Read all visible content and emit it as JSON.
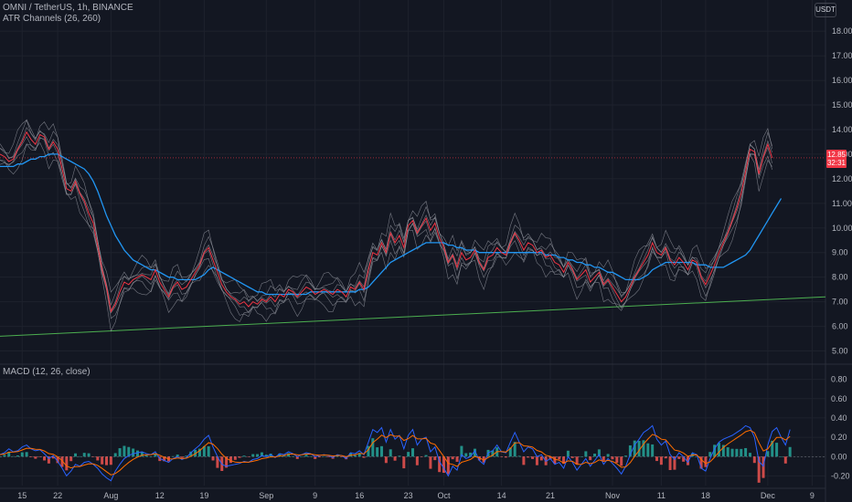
{
  "header": {
    "symbol_line": "OMNI / TetherUS, 1h, BINANCE",
    "indicator": "ATR Channels (26, 260)",
    "currency_button": "USDT"
  },
  "price_tag": {
    "price": "12.85",
    "countdown": "32:31"
  },
  "macd": {
    "title": "MACD (12, 26, close)"
  },
  "colors": {
    "background": "#131722",
    "ma_line": "#2196f3",
    "price_line": "#f23645",
    "channel": "#9598a1",
    "trendline": "#4caf50",
    "macd_line": "#2962ff",
    "signal_line": "#ff6d00",
    "hist_pos": "#26a69a",
    "hist_neg": "#ef5350"
  },
  "chart_data": [
    {
      "type": "line",
      "name": "price",
      "y_ticks": [
        5,
        6,
        7,
        8,
        9,
        10,
        11,
        12,
        13,
        14,
        15,
        16,
        17,
        18
      ],
      "y_tick_labels": [
        "5.00",
        "6.00",
        "7.00",
        "8.00",
        "9.00",
        "10.00",
        "11.00",
        "12.00",
        "13.00",
        "14.00",
        "15.00",
        "16.00",
        "17.00",
        "18.00"
      ],
      "ylim": [
        4.5,
        18.6
      ],
      "x_tick_labels": [
        "15",
        "22",
        "Aug",
        "12",
        "19",
        "Sep",
        "9",
        "16",
        "23",
        "Oct",
        "14",
        "21",
        "Nov",
        "11",
        "18",
        "Dec",
        "9"
      ],
      "x_tick_index": [
        5,
        13,
        25,
        36,
        46,
        60,
        71,
        81,
        92,
        100,
        113,
        124,
        138,
        149,
        159,
        173,
        183
      ],
      "x_range": [
        0,
        186
      ],
      "series": [
        {
          "key": "price",
          "values": [
            13.0,
            12.9,
            12.7,
            12.8,
            13.2,
            13.5,
            13.9,
            13.6,
            13.4,
            13.8,
            13.7,
            13.2,
            13.5,
            13.2,
            12.4,
            11.6,
            11.5,
            11.9,
            11.4,
            11.1,
            10.6,
            10.2,
            9.3,
            8.3,
            7.6,
            6.6,
            6.9,
            7.4,
            7.8,
            7.7,
            7.9,
            8.0,
            8.1,
            8.0,
            7.9,
            8.3,
            7.8,
            7.5,
            7.2,
            7.6,
            7.8,
            7.5,
            7.6,
            7.9,
            8.2,
            8.5,
            9.0,
            9.2,
            8.7,
            8.2,
            7.7,
            7.4,
            7.2,
            7.1,
            6.9,
            7.0,
            6.8,
            7.0,
            6.9,
            7.1,
            7.0,
            7.2,
            7.0,
            7.3,
            7.2,
            7.5,
            7.4,
            7.2,
            7.4,
            7.6,
            7.5,
            7.3,
            7.4,
            7.5,
            7.4,
            7.3,
            7.5,
            7.4,
            7.2,
            7.6,
            7.5,
            7.8,
            7.5,
            8.3,
            9.0,
            8.9,
            9.4,
            9.0,
            9.8,
            9.4,
            9.7,
            9.2,
            10.1,
            10.3,
            9.8,
            10.1,
            10.4,
            9.9,
            10.2,
            9.6,
            9.2,
            8.6,
            8.9,
            8.4,
            9.0,
            8.7,
            8.8,
            9.1,
            8.6,
            8.3,
            8.8,
            8.9,
            9.2,
            9.0,
            8.9,
            9.4,
            9.8,
            9.5,
            9.1,
            9.4,
            9.3,
            9.0,
            9.1,
            8.8,
            8.9,
            8.6,
            8.5,
            8.2,
            8.6,
            8.3,
            7.9,
            8.1,
            8.3,
            7.8,
            8.0,
            8.2,
            7.7,
            7.9,
            7.6,
            7.3,
            7.0,
            7.2,
            7.6,
            8.0,
            8.3,
            8.6,
            8.9,
            9.4,
            9.0,
            8.9,
            9.2,
            8.7,
            8.5,
            8.8,
            8.6,
            8.3,
            8.7,
            8.6,
            8.0,
            7.7,
            8.1,
            8.5,
            9.0,
            9.4,
            9.8,
            10.3,
            10.8,
            11.4,
            12.3,
            13.2,
            13.1,
            12.2,
            12.9,
            13.4,
            12.85
          ]
        },
        {
          "key": "ma",
          "values": [
            12.5,
            12.5,
            12.5,
            12.5,
            12.6,
            12.6,
            12.7,
            12.8,
            12.8,
            12.9,
            12.9,
            13.0,
            13.0,
            13.0,
            12.9,
            12.8,
            12.7,
            12.6,
            12.5,
            12.4,
            12.2,
            11.9,
            11.5,
            11.0,
            10.5,
            10.1,
            9.7,
            9.4,
            9.1,
            8.9,
            8.7,
            8.6,
            8.5,
            8.4,
            8.3,
            8.3,
            8.2,
            8.1,
            8.0,
            8.0,
            7.9,
            7.9,
            7.9,
            7.9,
            7.9,
            8.0,
            8.1,
            8.3,
            8.4,
            8.3,
            8.2,
            8.1,
            8.0,
            7.9,
            7.8,
            7.7,
            7.6,
            7.5,
            7.4,
            7.4,
            7.3,
            7.3,
            7.3,
            7.3,
            7.3,
            7.3,
            7.3,
            7.3,
            7.3,
            7.3,
            7.4,
            7.4,
            7.4,
            7.4,
            7.4,
            7.4,
            7.4,
            7.4,
            7.4,
            7.4,
            7.4,
            7.5,
            7.5,
            7.6,
            7.8,
            8.0,
            8.2,
            8.4,
            8.6,
            8.7,
            8.8,
            8.9,
            9.0,
            9.1,
            9.2,
            9.3,
            9.4,
            9.4,
            9.4,
            9.4,
            9.4,
            9.3,
            9.3,
            9.2,
            9.2,
            9.1,
            9.1,
            9.1,
            9.0,
            9.0,
            9.0,
            9.0,
            9.0,
            9.0,
            9.0,
            9.0,
            9.0,
            9.0,
            9.0,
            9.0,
            9.0,
            9.0,
            9.0,
            8.9,
            8.9,
            8.9,
            8.8,
            8.8,
            8.7,
            8.7,
            8.6,
            8.6,
            8.5,
            8.5,
            8.4,
            8.4,
            8.3,
            8.2,
            8.2,
            8.1,
            8.0,
            7.9,
            7.9,
            7.9,
            7.9,
            8.0,
            8.1,
            8.3,
            8.4,
            8.5,
            8.6,
            8.6,
            8.6,
            8.6,
            8.6,
            8.6,
            8.6,
            8.5,
            8.5,
            8.5,
            8.4,
            8.4,
            8.4,
            8.4,
            8.5,
            8.6,
            8.7,
            8.8,
            8.9,
            9.1,
            9.4,
            9.7,
            10.0,
            10.3,
            10.6,
            10.9,
            11.2
          ]
        },
        {
          "key": "trendline",
          "values_at_ends": {
            "x": [
              0,
              186
            ],
            "y": [
              5.6,
              7.2
            ]
          }
        }
      ]
    },
    {
      "type": "bar",
      "name": "macd",
      "y_ticks": [
        -0.2,
        0.0,
        0.2,
        0.4,
        0.6,
        0.8
      ],
      "y_tick_labels": [
        "-0.20",
        "0.00",
        "0.20",
        "0.40",
        "0.60",
        "0.80"
      ],
      "ylim": [
        -0.3,
        0.9
      ],
      "macd_values": [
        0.02,
        0.04,
        0.08,
        0.05,
        0.06,
        0.1,
        0.12,
        0.08,
        0.06,
        0.07,
        0.03,
        -0.02,
        0.01,
        -0.05,
        -0.12,
        -0.2,
        -0.15,
        -0.08,
        -0.1,
        -0.06,
        -0.05,
        -0.08,
        -0.12,
        -0.18,
        -0.22,
        -0.25,
        -0.15,
        -0.08,
        -0.02,
        0.01,
        0.03,
        0.04,
        0.05,
        0.03,
        0.02,
        0.05,
        -0.02,
        -0.04,
        -0.06,
        -0.02,
        0.0,
        -0.03,
        -0.01,
        0.04,
        0.08,
        0.12,
        0.18,
        0.22,
        0.1,
        0.0,
        -0.08,
        -0.1,
        -0.09,
        -0.08,
        -0.07,
        -0.05,
        -0.06,
        -0.03,
        -0.02,
        0.01,
        0.0,
        0.02,
        -0.01,
        0.03,
        0.02,
        0.05,
        0.03,
        0.0,
        0.02,
        0.04,
        0.03,
        0.0,
        0.01,
        0.02,
        0.01,
        -0.01,
        0.02,
        0.01,
        -0.02,
        0.04,
        0.03,
        0.06,
        0.02,
        0.15,
        0.28,
        0.25,
        0.3,
        0.15,
        0.28,
        0.18,
        0.22,
        0.08,
        0.22,
        0.28,
        0.12,
        0.18,
        0.2,
        0.05,
        0.1,
        -0.05,
        -0.12,
        -0.2,
        -0.1,
        -0.14,
        0.02,
        -0.02,
        0.0,
        0.06,
        -0.04,
        -0.08,
        0.04,
        0.06,
        0.12,
        0.05,
        0.04,
        0.15,
        0.25,
        0.15,
        0.05,
        0.1,
        0.08,
        0.0,
        0.02,
        -0.05,
        -0.02,
        -0.08,
        -0.06,
        -0.12,
        0.0,
        -0.06,
        -0.14,
        -0.08,
        -0.02,
        -0.1,
        -0.04,
        0.02,
        -0.08,
        -0.02,
        -0.07,
        -0.12,
        -0.18,
        -0.1,
        0.02,
        0.12,
        0.18,
        0.25,
        0.28,
        0.32,
        0.18,
        0.12,
        0.16,
        0.02,
        -0.03,
        0.04,
        0.0,
        -0.06,
        0.04,
        0.02,
        -0.12,
        -0.15,
        -0.02,
        0.08,
        0.15,
        0.18,
        0.2,
        0.22,
        0.25,
        0.28,
        0.32,
        0.3,
        0.2,
        -0.05,
        -0.1,
        0.12,
        0.26,
        0.3,
        0.2,
        0.12,
        0.28
      ]
    }
  ]
}
